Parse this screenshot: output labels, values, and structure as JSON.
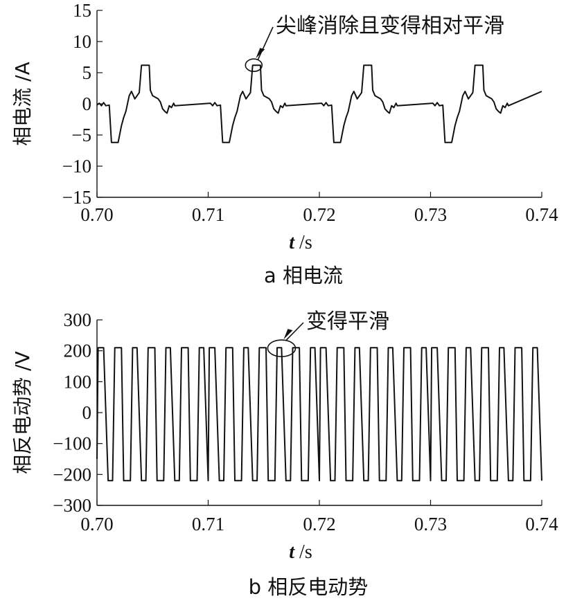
{
  "chart_data": [
    {
      "type": "line",
      "xlim": [
        0.7,
        0.74
      ],
      "ylim": [
        -15,
        15
      ],
      "x_ticks": [
        "0.70",
        "0.71",
        "0.72",
        "0.73",
        "0.74"
      ],
      "y_ticks": [
        "15",
        "10",
        "5",
        "0",
        "−5",
        "−10",
        "−15"
      ],
      "ylabel": "相电流 /A",
      "xlabel_var": "t",
      "xlabel_unit": " /s",
      "caption": "a  相电流",
      "annotation": {
        "text": "尖峰消除且变得相对平滑",
        "x": 0.7141,
        "y": 6.2
      },
      "series": [
        {
          "period": 0.01,
          "x": [
            0.7,
            0.7002,
            0.7004,
            0.7006,
            0.7008,
            0.7011,
            0.7013,
            0.7015,
            0.7019,
            0.7022,
            0.7024,
            0.7026,
            0.7029,
            0.7031,
            0.7034,
            0.7038,
            0.704,
            0.7042,
            0.7047,
            0.7048,
            0.705,
            0.7055,
            0.7057,
            0.7059,
            0.7061,
            0.7063,
            0.7065,
            0.7067,
            0.7069,
            0.707
          ],
          "y": [
            -0.2,
            0.1,
            -0.3,
            0.2,
            -0.3,
            -0.2,
            -6.2,
            -6.2,
            -6.2,
            -3.5,
            -2.2,
            -1.2,
            1.3,
            2.0,
            0.8,
            1.8,
            6.2,
            6.2,
            6.2,
            2.2,
            1.3,
            0.8,
            0.3,
            -0.8,
            -1.2,
            -1.5,
            -0.3,
            -0.6,
            0.1,
            -0.3
          ]
        }
      ]
    },
    {
      "type": "line",
      "xlim": [
        0.7,
        0.74
      ],
      "ylim": [
        -300,
        300
      ],
      "x_ticks": [
        "0.70",
        "0.71",
        "0.72",
        "0.73",
        "0.74"
      ],
      "y_ticks": [
        "300",
        "200",
        "100",
        "0",
        "−100",
        "−200",
        "−300"
      ],
      "ylabel": "相反电动势 /V",
      "xlabel_var": "t",
      "xlabel_unit": " /s",
      "caption": "b  相反电动势",
      "annotation": {
        "text": "变得平滑",
        "x": 0.7166,
        "y": 208
      },
      "series": [
        {
          "x": [
            0.7,
            0.7001,
            0.7004,
            0.7006,
            0.701,
            0.7012,
            0.7014,
            0.7016,
            0.702,
            0.7022,
            0.7024,
            0.7026,
            0.703,
            0.7032,
            0.7034,
            0.7036,
            0.704,
            0.7042,
            0.7044,
            0.7046,
            0.705,
            0.7052,
            0.7054,
            0.7056,
            0.706,
            0.7062,
            0.7064,
            0.7066,
            0.707,
            0.7072,
            0.7074,
            0.7076,
            0.708,
            0.7082,
            0.7084,
            0.7086,
            0.709,
            0.7092,
            0.7094,
            0.7096,
            0.71
          ],
          "y": [
            -150,
            210,
            210,
            210,
            -220,
            -220,
            -220,
            210,
            210,
            210,
            -220,
            -220,
            -220,
            210,
            210,
            210,
            -220,
            -220,
            -220,
            210,
            210,
            210,
            -220,
            -220,
            -220,
            210,
            210,
            210,
            -220,
            -220,
            -220,
            210,
            210,
            210,
            -220,
            -220,
            -220,
            210,
            210,
            210,
            -220
          ]
        }
      ]
    }
  ]
}
